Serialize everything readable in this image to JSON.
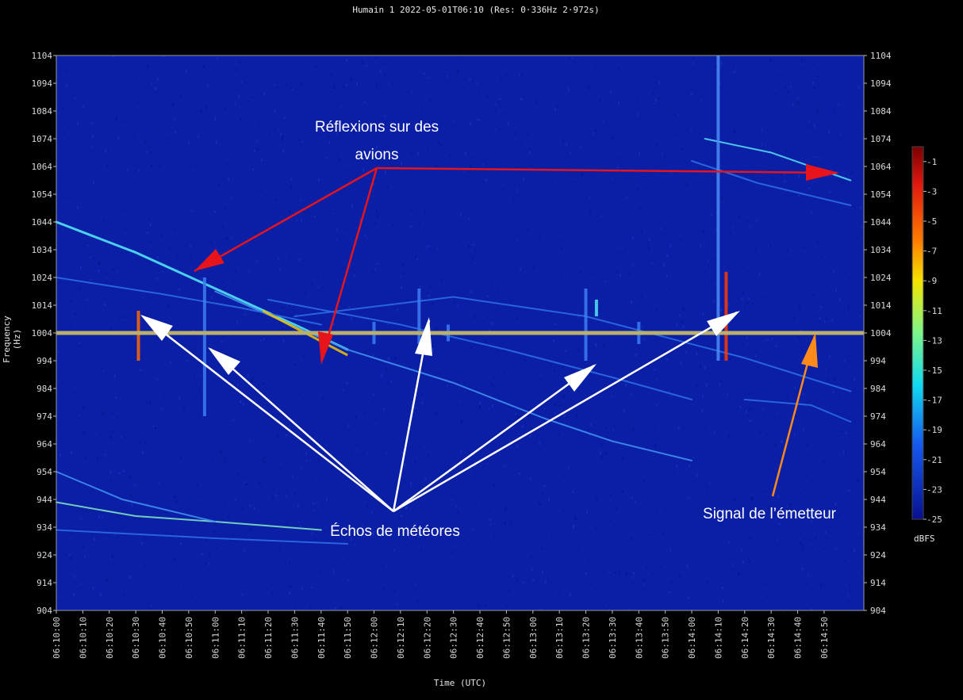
{
  "chart_data": {
    "type": "heatmap",
    "title": "Humain 1 2022-05-01T06:10 (Res: 0·336Hz 2·972s)",
    "xlabel": "Time (UTC)",
    "ylabel": "Frequency (Hz)",
    "ylim": [
      904,
      1104
    ],
    "y_ticks": [
      1104,
      1094,
      1084,
      1074,
      1064,
      1054,
      1044,
      1034,
      1024,
      1014,
      1004,
      994,
      984,
      974,
      964,
      954,
      944,
      934,
      924,
      914,
      904
    ],
    "x_range": [
      "06:10:00",
      "06:15:00"
    ],
    "x_ticks": [
      "06:10:00",
      "06:10:10",
      "06:10:20",
      "06:10:30",
      "06:10:40",
      "06:10:50",
      "06:11:00",
      "06:11:10",
      "06:11:20",
      "06:11:30",
      "06:11:40",
      "06:11:50",
      "06:12:00",
      "06:12:10",
      "06:12:20",
      "06:12:30",
      "06:12:40",
      "06:12:50",
      "06:13:00",
      "06:13:10",
      "06:13:20",
      "06:13:30",
      "06:13:40",
      "06:13:50",
      "06:14:00",
      "06:14:10",
      "06:14:20",
      "06:14:30",
      "06:14:40",
      "06:14:50"
    ],
    "colorbar": {
      "unit": "dBFS",
      "range": [
        -25,
        0
      ],
      "ticks": [
        -1,
        -3,
        -5,
        -7,
        -9,
        -11,
        -13,
        -15,
        -17,
        -19,
        -21,
        -23,
        -25
      ]
    },
    "background_color": "#0a1ea6",
    "transmitter_line": {
      "freq_hz": 1004,
      "color": "#b9b06c"
    },
    "aircraft_traces": [
      {
        "points": [
          [
            0,
            1044
          ],
          [
            30,
            1033
          ],
          [
            60,
            1020
          ],
          [
            90,
            1007
          ],
          [
            110,
            998
          ]
        ],
        "color": "#52e3f4"
      },
      {
        "points": [
          [
            60,
            1019
          ],
          [
            110,
            998
          ],
          [
            150,
            986
          ],
          [
            185,
            973
          ],
          [
            210,
            965
          ],
          [
            240,
            958
          ]
        ],
        "color": "#3f8ff0"
      },
      {
        "points": [
          [
            80,
            1016
          ],
          [
            130,
            1007
          ],
          [
            170,
            998
          ],
          [
            210,
            988
          ],
          [
            240,
            980
          ]
        ],
        "color": "#2b6de0"
      },
      {
        "points": [
          [
            0,
            1024
          ],
          [
            40,
            1018
          ],
          [
            70,
            1013
          ],
          [
            100,
            1007
          ]
        ],
        "color": "#2b6de0"
      },
      {
        "points": [
          [
            90,
            1010
          ],
          [
            150,
            1017
          ],
          [
            200,
            1010
          ],
          [
            260,
            995
          ],
          [
            300,
            983
          ]
        ],
        "color": "#2b6de0"
      },
      {
        "points": [
          [
            0,
            943
          ],
          [
            30,
            938
          ],
          [
            60,
            936
          ],
          [
            100,
            933
          ]
        ],
        "color": "#7be0c0"
      },
      {
        "points": [
          [
            0,
            954
          ],
          [
            25,
            944
          ],
          [
            60,
            936
          ]
        ],
        "color": "#3f8ff0"
      },
      {
        "points": [
          [
            0,
            933
          ],
          [
            60,
            930
          ],
          [
            110,
            928
          ]
        ],
        "color": "#2b6de0"
      },
      {
        "points": [
          [
            245,
            1074
          ],
          [
            270,
            1069
          ],
          [
            300,
            1059
          ]
        ],
        "color": "#52d8f0"
      },
      {
        "points": [
          [
            240,
            1066
          ],
          [
            265,
            1058
          ],
          [
            300,
            1050
          ]
        ],
        "color": "#2b6de0"
      },
      {
        "points": [
          [
            260,
            980
          ],
          [
            285,
            978
          ],
          [
            300,
            972
          ]
        ],
        "color": "#2b6de0"
      }
    ],
    "meteor_echoes": [
      {
        "t_s": 31,
        "f_lo": 994,
        "f_hi": 1012,
        "color": "#ff6a00"
      },
      {
        "t_s": 56,
        "f_lo": 974,
        "f_hi": 1024,
        "color": "#3d7ef0"
      },
      {
        "t_s": 120,
        "f_lo": 1000,
        "f_hi": 1008,
        "color": "#3d7ef0"
      },
      {
        "t_s": 137,
        "f_lo": 1000,
        "f_hi": 1020,
        "color": "#3d7ef0"
      },
      {
        "t_s": 148,
        "f_lo": 1001,
        "f_hi": 1007,
        "color": "#3d7ef0"
      },
      {
        "t_s": 200,
        "f_lo": 994,
        "f_hi": 1020,
        "color": "#3d7ef0"
      },
      {
        "t_s": 204,
        "f_lo": 1010,
        "f_hi": 1016,
        "color": "#52e3f4"
      },
      {
        "t_s": 220,
        "f_lo": 1000,
        "f_hi": 1008,
        "color": "#3d7ef0"
      },
      {
        "t_s": 250,
        "f_lo": 994,
        "f_hi": 1104,
        "color": "#4a8cf5"
      },
      {
        "t_s": 253,
        "f_lo": 994,
        "f_hi": 1026,
        "color": "#ff3a00"
      }
    ],
    "annotations": [
      {
        "text": "Réflexions sur des",
        "t_s": 118,
        "f_hz": 1021
      },
      {
        "text": "avions",
        "t_s": 118,
        "f_hz": 1011
      },
      {
        "text": "Échos de météores",
        "t_s": 123,
        "f_hz": 931
      },
      {
        "text": "Signal de l’émetteur",
        "t_s": 277,
        "f_hz": 938
      }
    ]
  }
}
